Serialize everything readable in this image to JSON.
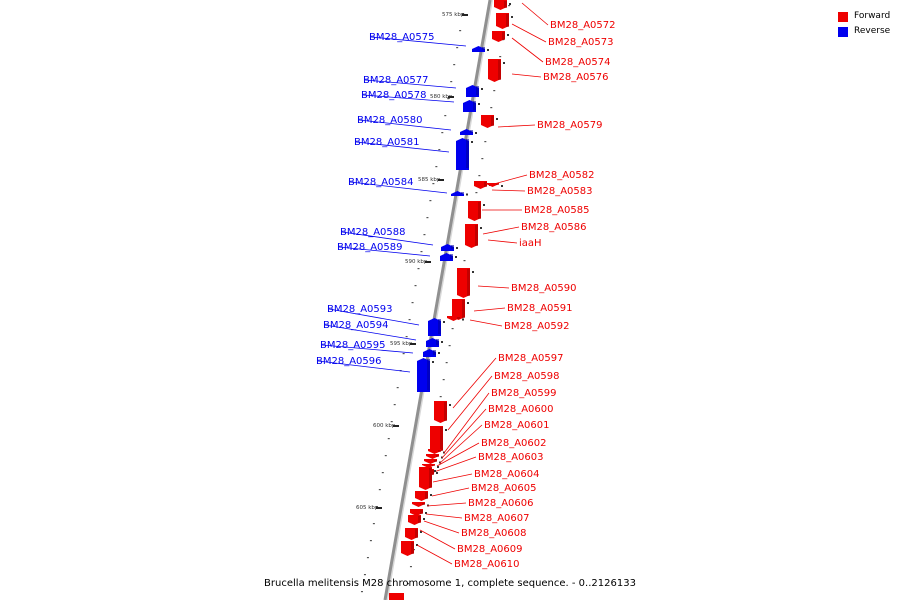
{
  "caption": "Brucella melitensis M28 chromosome 1, complete sequence. - 0..2126133",
  "legend": [
    {
      "label": "Forward",
      "color": "#ee0000"
    },
    {
      "label": "Reverse",
      "color": "#0000ee"
    }
  ],
  "colors": {
    "forward": "#ee0000",
    "reverse": "#0000ee",
    "backbone": "#909090"
  },
  "positions": [
    {
      "label": "575 kbp"
    },
    {
      "label": "580 kbp"
    },
    {
      "label": "585 kbp"
    },
    {
      "label": "590 kbp"
    },
    {
      "label": "595 kbp"
    },
    {
      "label": "600 kbp"
    },
    {
      "label": "605 kbp"
    }
  ],
  "genes": [
    {
      "name": "BM28_A0572",
      "strand": "forward"
    },
    {
      "name": "BM28_A0573",
      "strand": "forward"
    },
    {
      "name": "BM28_A0574",
      "strand": "forward"
    },
    {
      "name": "BM28_A0575",
      "strand": "reverse"
    },
    {
      "name": "BM28_A0576",
      "strand": "forward"
    },
    {
      "name": "BM28_A0577",
      "strand": "reverse"
    },
    {
      "name": "BM28_A0578",
      "strand": "reverse"
    },
    {
      "name": "BM28_A0579",
      "strand": "forward"
    },
    {
      "name": "BM28_A0580",
      "strand": "reverse"
    },
    {
      "name": "BM28_A0581",
      "strand": "reverse"
    },
    {
      "name": "BM28_A0582",
      "strand": "forward"
    },
    {
      "name": "BM28_A0583",
      "strand": "forward"
    },
    {
      "name": "BM28_A0584",
      "strand": "reverse"
    },
    {
      "name": "BM28_A0585",
      "strand": "forward"
    },
    {
      "name": "BM28_A0586",
      "strand": "forward"
    },
    {
      "name": "iaaH",
      "strand": "forward"
    },
    {
      "name": "BM28_A0588",
      "strand": "reverse"
    },
    {
      "name": "BM28_A0589",
      "strand": "reverse"
    },
    {
      "name": "BM28_A0590",
      "strand": "forward"
    },
    {
      "name": "BM28_A0591",
      "strand": "forward"
    },
    {
      "name": "BM28_A0592",
      "strand": "forward"
    },
    {
      "name": "BM28_A0593",
      "strand": "reverse"
    },
    {
      "name": "BM28_A0594",
      "strand": "reverse"
    },
    {
      "name": "BM28_A0595",
      "strand": "reverse"
    },
    {
      "name": "BM28_A0596",
      "strand": "reverse"
    },
    {
      "name": "BM28_A0597",
      "strand": "forward"
    },
    {
      "name": "BM28_A0598",
      "strand": "forward"
    },
    {
      "name": "BM28_A0599",
      "strand": "forward"
    },
    {
      "name": "BM28_A0600",
      "strand": "forward"
    },
    {
      "name": "BM28_A0601",
      "strand": "forward"
    },
    {
      "name": "BM28_A0602",
      "strand": "forward"
    },
    {
      "name": "BM28_A0603",
      "strand": "forward"
    },
    {
      "name": "BM28_A0604",
      "strand": "forward"
    },
    {
      "name": "BM28_A0605",
      "strand": "forward"
    },
    {
      "name": "BM28_A0606",
      "strand": "forward"
    },
    {
      "name": "BM28_A0607",
      "strand": "forward"
    },
    {
      "name": "BM28_A0608",
      "strand": "forward"
    },
    {
      "name": "BM28_A0609",
      "strand": "forward"
    },
    {
      "name": "BM28_A0610",
      "strand": "forward"
    }
  ]
}
